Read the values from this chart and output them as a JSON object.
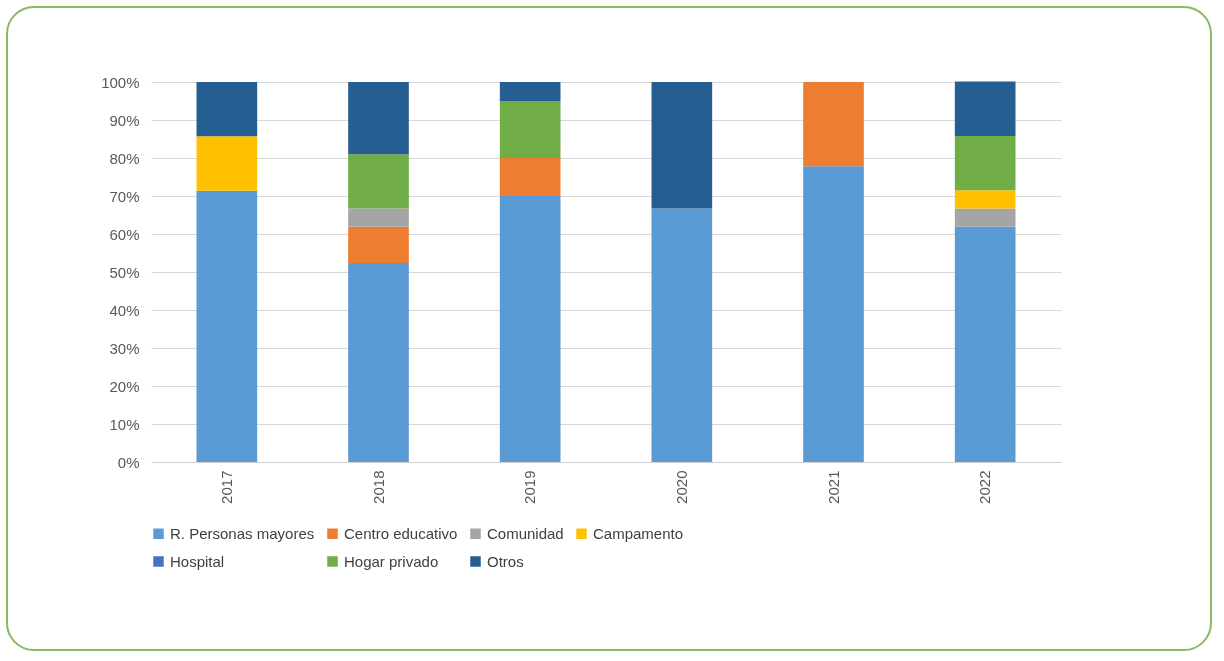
{
  "chart_data": {
    "type": "bar",
    "stacked": true,
    "categories": [
      "2017",
      "2018",
      "2019",
      "2020",
      "2021",
      "2022"
    ],
    "series": [
      {
        "name": "R. Personas mayores",
        "color": "#5b9bd5",
        "values": [
          71.4,
          52.4,
          70,
          66.7,
          77.8,
          61.9
        ]
      },
      {
        "name": "Centro educativo",
        "color": "#ed7d31",
        "values": [
          null,
          9.5,
          10,
          null,
          22.2,
          null
        ]
      },
      {
        "name": "Comunidad",
        "color": "#a5a5a5",
        "values": [
          null,
          4.8,
          null,
          null,
          null,
          4.8
        ]
      },
      {
        "name": "Campamento",
        "color": "#ffc000",
        "values": [
          14.3,
          null,
          null,
          null,
          null,
          4.8
        ]
      },
      {
        "name": "Hospital",
        "color": "#4472c4",
        "values": [
          null,
          null,
          null,
          null,
          null,
          null
        ]
      },
      {
        "name": "Hogar privado",
        "color": "#70ad47",
        "values": [
          null,
          14.3,
          15,
          null,
          null,
          14.3
        ]
      },
      {
        "name": "Otros",
        "color": "#255e91",
        "values": [
          14.3,
          19,
          5,
          33.3,
          null,
          14.3
        ]
      }
    ],
    "ylim": [
      0,
      100
    ],
    "yticks": [
      {
        "value": 0,
        "label": "0%"
      },
      {
        "value": 10,
        "label": "10%"
      },
      {
        "value": 20,
        "label": "20%"
      },
      {
        "value": 30,
        "label": "30%"
      },
      {
        "value": 40,
        "label": "40%"
      },
      {
        "value": 50,
        "label": "50%"
      },
      {
        "value": 60,
        "label": "60%"
      },
      {
        "value": 70,
        "label": "70%"
      },
      {
        "value": 80,
        "label": "80%"
      },
      {
        "value": 90,
        "label": "90%"
      },
      {
        "value": 100,
        "label": "100%"
      }
    ],
    "grid": "y",
    "legend": "bottom"
  }
}
